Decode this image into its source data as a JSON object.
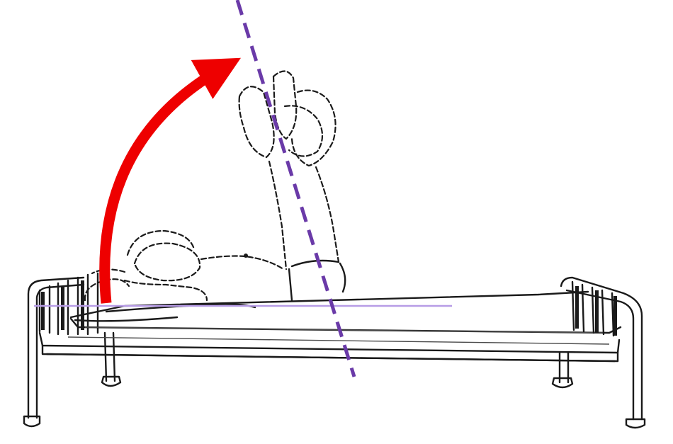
{
  "figure": {
    "colors": {
      "ink": "#1a1a1a",
      "rotation_arrow": "#ee0000",
      "trunk_axis": "#6a3aa8",
      "bed_surface_line": "#b79ce6"
    },
    "elements": {
      "bed": "hospital-bed",
      "patient": "supine-patient-sit-up-motion",
      "arrow": "curved-rotation-arrow",
      "axis": "dashed-trunk-axis-line",
      "reference": "horizontal-reference-line"
    }
  }
}
